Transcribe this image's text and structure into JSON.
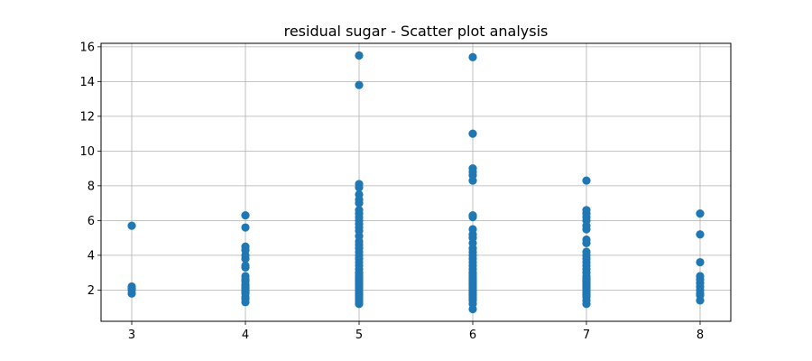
{
  "chart_data": {
    "type": "scatter",
    "title": "residual sugar - Scatter plot analysis",
    "xlabel": "",
    "ylabel": "",
    "xlim": [
      2.73,
      8.27
    ],
    "ylim": [
      0.2,
      16.2
    ],
    "x_ticks": [
      3,
      4,
      5,
      6,
      7,
      8
    ],
    "y_ticks": [
      2,
      4,
      6,
      8,
      10,
      12,
      14,
      16
    ],
    "grid": true,
    "legend": "none",
    "marker_color": "#1f77b4",
    "points": [
      {
        "x": 3,
        "y": 1.8
      },
      {
        "x": 3,
        "y": 2.0
      },
      {
        "x": 3,
        "y": 2.1
      },
      {
        "x": 3,
        "y": 2.2
      },
      {
        "x": 3,
        "y": 5.7
      },
      {
        "x": 4,
        "y": 1.3
      },
      {
        "x": 4,
        "y": 1.5
      },
      {
        "x": 4,
        "y": 1.6
      },
      {
        "x": 4,
        "y": 1.8
      },
      {
        "x": 4,
        "y": 1.9
      },
      {
        "x": 4,
        "y": 2.0
      },
      {
        "x": 4,
        "y": 2.1
      },
      {
        "x": 4,
        "y": 2.2
      },
      {
        "x": 4,
        "y": 2.3
      },
      {
        "x": 4,
        "y": 2.5
      },
      {
        "x": 4,
        "y": 2.6
      },
      {
        "x": 4,
        "y": 2.8
      },
      {
        "x": 4,
        "y": 3.3
      },
      {
        "x": 4,
        "y": 3.4
      },
      {
        "x": 4,
        "y": 3.8
      },
      {
        "x": 4,
        "y": 4.0
      },
      {
        "x": 4,
        "y": 4.3
      },
      {
        "x": 4,
        "y": 4.5
      },
      {
        "x": 4,
        "y": 5.6
      },
      {
        "x": 4,
        "y": 6.3
      },
      {
        "x": 5,
        "y": 1.2
      },
      {
        "x": 5,
        "y": 1.3
      },
      {
        "x": 5,
        "y": 1.4
      },
      {
        "x": 5,
        "y": 1.5
      },
      {
        "x": 5,
        "y": 1.6
      },
      {
        "x": 5,
        "y": 1.7
      },
      {
        "x": 5,
        "y": 1.8
      },
      {
        "x": 5,
        "y": 1.9
      },
      {
        "x": 5,
        "y": 2.0
      },
      {
        "x": 5,
        "y": 2.1
      },
      {
        "x": 5,
        "y": 2.2
      },
      {
        "x": 5,
        "y": 2.3
      },
      {
        "x": 5,
        "y": 2.4
      },
      {
        "x": 5,
        "y": 2.5
      },
      {
        "x": 5,
        "y": 2.6
      },
      {
        "x": 5,
        "y": 2.7
      },
      {
        "x": 5,
        "y": 2.8
      },
      {
        "x": 5,
        "y": 2.9
      },
      {
        "x": 5,
        "y": 3.0
      },
      {
        "x": 5,
        "y": 3.2
      },
      {
        "x": 5,
        "y": 3.4
      },
      {
        "x": 5,
        "y": 3.6
      },
      {
        "x": 5,
        "y": 3.8
      },
      {
        "x": 5,
        "y": 4.0
      },
      {
        "x": 5,
        "y": 4.2
      },
      {
        "x": 5,
        "y": 4.4
      },
      {
        "x": 5,
        "y": 4.6
      },
      {
        "x": 5,
        "y": 4.8
      },
      {
        "x": 5,
        "y": 5.1
      },
      {
        "x": 5,
        "y": 5.4
      },
      {
        "x": 5,
        "y": 5.6
      },
      {
        "x": 5,
        "y": 5.8
      },
      {
        "x": 5,
        "y": 6.0
      },
      {
        "x": 5,
        "y": 6.2
      },
      {
        "x": 5,
        "y": 6.4
      },
      {
        "x": 5,
        "y": 6.6
      },
      {
        "x": 5,
        "y": 7.0
      },
      {
        "x": 5,
        "y": 7.2
      },
      {
        "x": 5,
        "y": 7.5
      },
      {
        "x": 5,
        "y": 7.9
      },
      {
        "x": 5,
        "y": 8.1
      },
      {
        "x": 5,
        "y": 13.8
      },
      {
        "x": 5,
        "y": 15.5
      },
      {
        "x": 6,
        "y": 0.9
      },
      {
        "x": 6,
        "y": 1.2
      },
      {
        "x": 6,
        "y": 1.4
      },
      {
        "x": 6,
        "y": 1.5
      },
      {
        "x": 6,
        "y": 1.6
      },
      {
        "x": 6,
        "y": 1.7
      },
      {
        "x": 6,
        "y": 1.8
      },
      {
        "x": 6,
        "y": 1.9
      },
      {
        "x": 6,
        "y": 2.0
      },
      {
        "x": 6,
        "y": 2.1
      },
      {
        "x": 6,
        "y": 2.2
      },
      {
        "x": 6,
        "y": 2.3
      },
      {
        "x": 6,
        "y": 2.4
      },
      {
        "x": 6,
        "y": 2.5
      },
      {
        "x": 6,
        "y": 2.6
      },
      {
        "x": 6,
        "y": 2.7
      },
      {
        "x": 6,
        "y": 2.8
      },
      {
        "x": 6,
        "y": 2.9
      },
      {
        "x": 6,
        "y": 3.0
      },
      {
        "x": 6,
        "y": 3.2
      },
      {
        "x": 6,
        "y": 3.4
      },
      {
        "x": 6,
        "y": 3.6
      },
      {
        "x": 6,
        "y": 3.8
      },
      {
        "x": 6,
        "y": 4.0
      },
      {
        "x": 6,
        "y": 4.2
      },
      {
        "x": 6,
        "y": 4.4
      },
      {
        "x": 6,
        "y": 4.7
      },
      {
        "x": 6,
        "y": 5.0
      },
      {
        "x": 6,
        "y": 5.2
      },
      {
        "x": 6,
        "y": 5.5
      },
      {
        "x": 6,
        "y": 6.2
      },
      {
        "x": 6,
        "y": 6.3
      },
      {
        "x": 6,
        "y": 8.3
      },
      {
        "x": 6,
        "y": 8.6
      },
      {
        "x": 6,
        "y": 8.8
      },
      {
        "x": 6,
        "y": 9.0
      },
      {
        "x": 6,
        "y": 11.0
      },
      {
        "x": 6,
        "y": 15.4
      },
      {
        "x": 7,
        "y": 1.2
      },
      {
        "x": 7,
        "y": 1.4
      },
      {
        "x": 7,
        "y": 1.6
      },
      {
        "x": 7,
        "y": 1.7
      },
      {
        "x": 7,
        "y": 1.8
      },
      {
        "x": 7,
        "y": 1.9
      },
      {
        "x": 7,
        "y": 2.0
      },
      {
        "x": 7,
        "y": 2.1
      },
      {
        "x": 7,
        "y": 2.2
      },
      {
        "x": 7,
        "y": 2.3
      },
      {
        "x": 7,
        "y": 2.4
      },
      {
        "x": 7,
        "y": 2.5
      },
      {
        "x": 7,
        "y": 2.6
      },
      {
        "x": 7,
        "y": 2.7
      },
      {
        "x": 7,
        "y": 2.8
      },
      {
        "x": 7,
        "y": 3.0
      },
      {
        "x": 7,
        "y": 3.2
      },
      {
        "x": 7,
        "y": 3.4
      },
      {
        "x": 7,
        "y": 3.6
      },
      {
        "x": 7,
        "y": 3.8
      },
      {
        "x": 7,
        "y": 4.0
      },
      {
        "x": 7,
        "y": 4.2
      },
      {
        "x": 7,
        "y": 4.7
      },
      {
        "x": 7,
        "y": 4.9
      },
      {
        "x": 7,
        "y": 5.5
      },
      {
        "x": 7,
        "y": 5.7
      },
      {
        "x": 7,
        "y": 6.0
      },
      {
        "x": 7,
        "y": 6.2
      },
      {
        "x": 7,
        "y": 6.4
      },
      {
        "x": 7,
        "y": 6.6
      },
      {
        "x": 7,
        "y": 8.3
      },
      {
        "x": 8,
        "y": 1.4
      },
      {
        "x": 8,
        "y": 1.7
      },
      {
        "x": 8,
        "y": 1.8
      },
      {
        "x": 8,
        "y": 2.0
      },
      {
        "x": 8,
        "y": 2.2
      },
      {
        "x": 8,
        "y": 2.4
      },
      {
        "x": 8,
        "y": 2.6
      },
      {
        "x": 8,
        "y": 2.8
      },
      {
        "x": 8,
        "y": 3.6
      },
      {
        "x": 8,
        "y": 5.2
      },
      {
        "x": 8,
        "y": 6.4
      }
    ]
  }
}
